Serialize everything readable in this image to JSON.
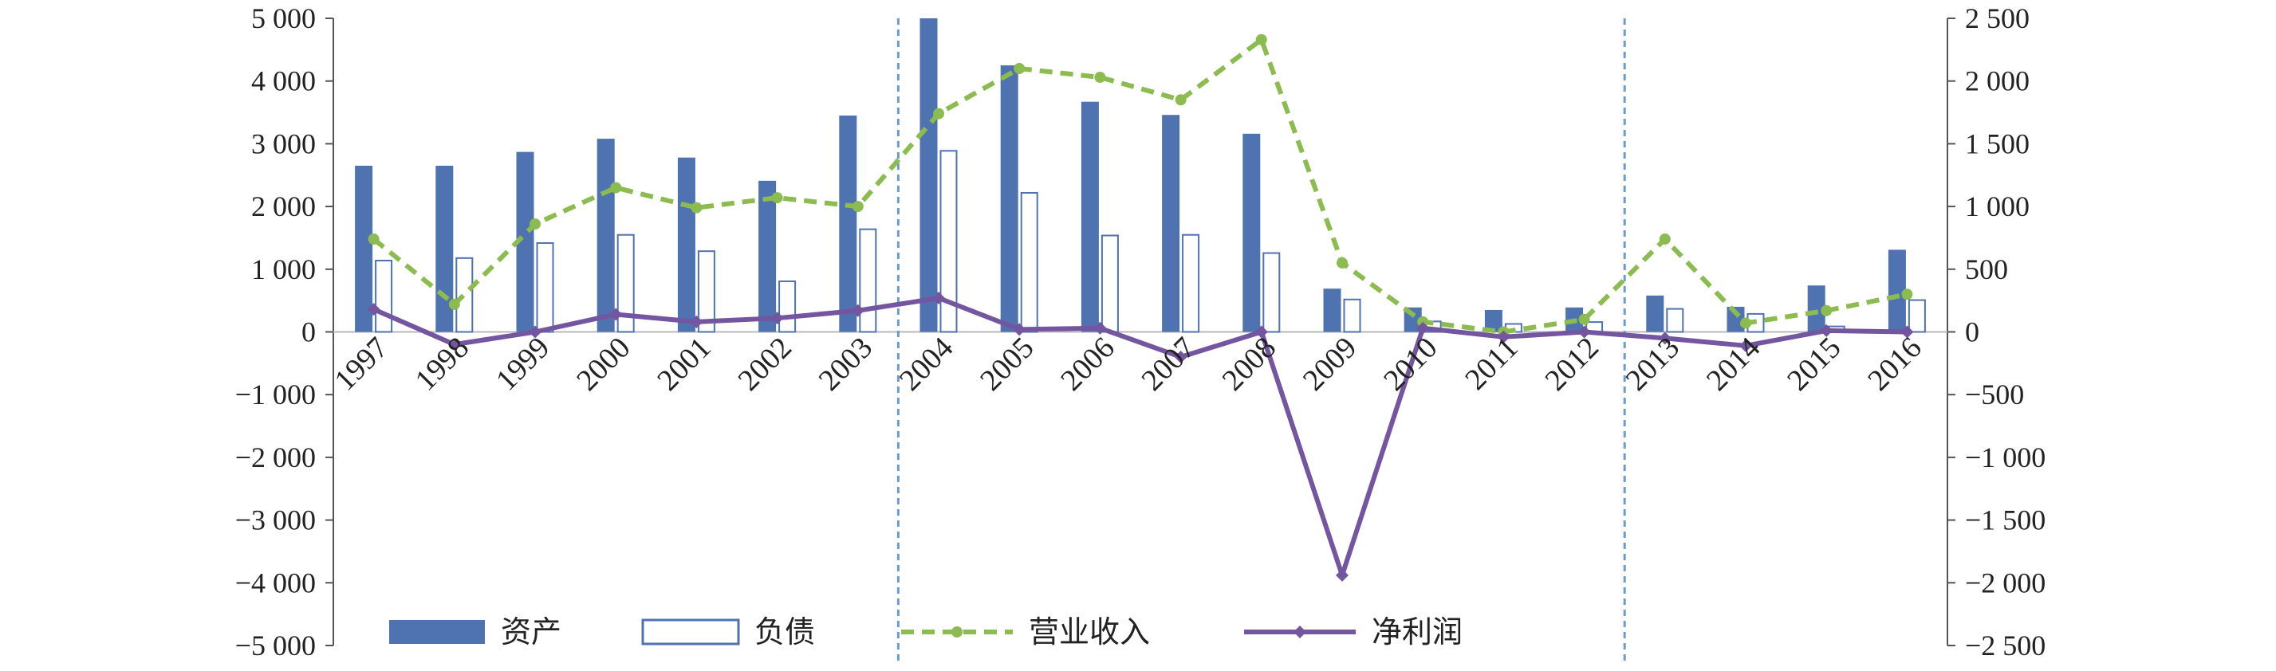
{
  "chart_data": {
    "type": "bar",
    "categories": [
      "1997",
      "1998",
      "1999",
      "2000",
      "2001",
      "2002",
      "2003",
      "2004",
      "2005",
      "2006",
      "2007",
      "2008",
      "2009",
      "2010",
      "2011",
      "2012",
      "2013",
      "2014",
      "2015",
      "2016"
    ],
    "series": [
      {
        "name": "资产",
        "type": "bar",
        "axis": "left",
        "color": "#4F72B0",
        "values": [
          2650,
          2650,
          2870,
          3080,
          2780,
          2410,
          3450,
          5000,
          4250,
          3670,
          3460,
          3160,
          690,
          390,
          350,
          390,
          580,
          400,
          740,
          1310
        ]
      },
      {
        "name": "负债",
        "type": "bar-outline",
        "axis": "left",
        "color": "#4F72B0",
        "values": [
          1150,
          1190,
          1430,
          1560,
          1300,
          820,
          1650,
          2900,
          2230,
          1550,
          1560,
          1270,
          530,
          180,
          140,
          170,
          380,
          300,
          100,
          520
        ]
      },
      {
        "name": "营业收入",
        "type": "line-dashed",
        "axis": "right",
        "color": "#8CBB4F",
        "values": [
          740,
          220,
          860,
          1150,
          990,
          1070,
          1000,
          1740,
          2100,
          2030,
          1850,
          2330,
          550,
          80,
          0,
          100,
          740,
          70,
          170,
          300
        ]
      },
      {
        "name": "净利润",
        "type": "line",
        "axis": "right",
        "color": "#7455A0",
        "values": [
          180,
          -100,
          0,
          140,
          80,
          110,
          170,
          270,
          20,
          30,
          -200,
          0,
          -1940,
          30,
          -40,
          0,
          -50,
          -110,
          10,
          0
        ]
      }
    ],
    "y_left": {
      "min": -5000,
      "max": 5000,
      "step": 1000,
      "tick_labels": [
        "−5 000",
        "−4 000",
        "−3 000",
        "−2 000",
        "−1 000",
        "0",
        "1 000",
        "2 000",
        "3 000",
        "4 000",
        "5 000"
      ]
    },
    "y_right": {
      "min": -2500,
      "max": 2500,
      "step": 500,
      "tick_labels": [
        "−2 500",
        "−2 000",
        "−1 500",
        "−1 000",
        "−500",
        "0",
        "500",
        "1 000",
        "1 500",
        "2 000",
        "2 500"
      ]
    },
    "vertical_dividers_after": [
      "2003",
      "2012"
    ],
    "legend": {
      "position": "bottom-inside",
      "items": [
        {
          "label": "资产",
          "style": "bar"
        },
        {
          "label": "负债",
          "style": "bar-outline"
        },
        {
          "label": "营业收入",
          "style": "line-dashed"
        },
        {
          "label": "净利润",
          "style": "line"
        }
      ]
    },
    "grid": false
  }
}
